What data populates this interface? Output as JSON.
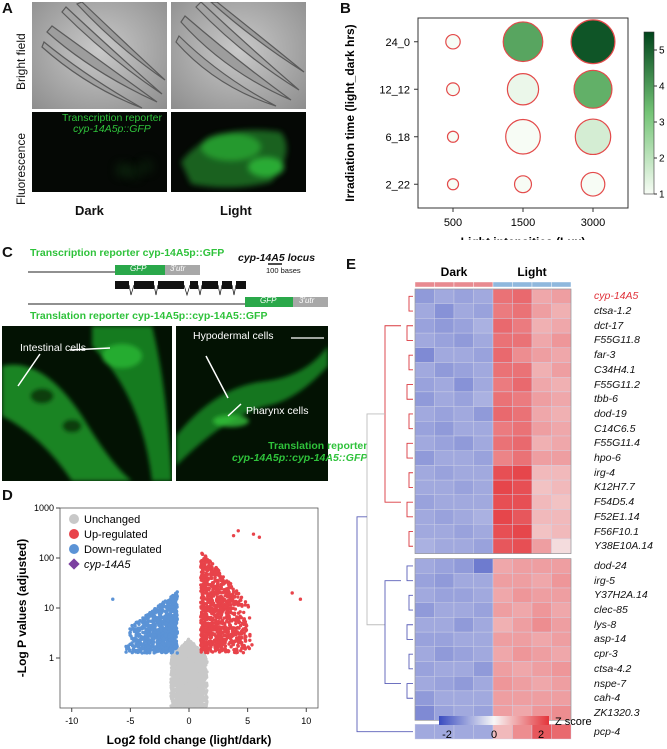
{
  "panel_a": {
    "label": "A",
    "row_labels": {
      "bright": "Bright field",
      "fluor": "Fluorescence"
    },
    "col_labels": {
      "dark": "Dark",
      "light": "Light"
    },
    "reporter_line1": "Transcription reporter",
    "reporter_line2": "cyp-14A5p::GFP"
  },
  "panel_b": {
    "label": "B",
    "chart_data": {
      "type": "bubble",
      "title": "",
      "xlabel": "Light intensities (Lux)",
      "ylabel": "Irradiation time (light_dark hrs)",
      "categories_x": [
        "500",
        "1500",
        "3000"
      ],
      "categories_y": [
        "2_22",
        "6_18",
        "12_12",
        "24_0"
      ],
      "colorbar": {
        "min": 1,
        "max": 5,
        "ticks": [
          1,
          2,
          3,
          4,
          5
        ]
      },
      "points": [
        {
          "x": "500",
          "y": "24_0",
          "size": 1.0,
          "color_value": 1.0
        },
        {
          "x": "500",
          "y": "12_12",
          "size": 0.8,
          "color_value": 1.0
        },
        {
          "x": "500",
          "y": "6_18",
          "size": 0.6,
          "color_value": 1.0
        },
        {
          "x": "500",
          "y": "2_22",
          "size": 0.6,
          "color_value": 1.0
        },
        {
          "x": "1500",
          "y": "24_0",
          "size": 4.0,
          "color_value": 3.8
        },
        {
          "x": "1500",
          "y": "12_12",
          "size": 3.0,
          "color_value": 1.2
        },
        {
          "x": "1500",
          "y": "6_18",
          "size": 3.4,
          "color_value": 1.0
        },
        {
          "x": "1500",
          "y": "2_22",
          "size": 1.3,
          "color_value": 1.0
        },
        {
          "x": "3000",
          "y": "24_0",
          "size": 4.5,
          "color_value": 5.2
        },
        {
          "x": "3000",
          "y": "12_12",
          "size": 3.8,
          "color_value": 3.6
        },
        {
          "x": "3000",
          "y": "6_18",
          "size": 3.5,
          "color_value": 1.6
        },
        {
          "x": "3000",
          "y": "2_22",
          "size": 2.1,
          "color_value": 1.0
        }
      ],
      "colors": {
        "low": "#f7fcf5",
        "high": "#00441b",
        "edge": "#e34a4a"
      }
    }
  },
  "panel_c": {
    "label": "C",
    "transcription_reporter": "Transcription reporter cyp-14A5p::GFP",
    "locus": "cyp-14A5 locus",
    "scale": "100 bases",
    "gfp": "GFP",
    "utr": "3'utr",
    "translation_reporter": "Translation reporter cyp-14A5p::cyp-14A5::GFP",
    "intestinal": "Intestinal cells",
    "hypodermal": "Hypodermal cells",
    "pharynx": "Pharynx cells",
    "translation_line1": "Translation reporter",
    "translation_line2": "cyp-14A5p::cyp-14A5::GFP"
  },
  "panel_d": {
    "label": "D",
    "chart_data": {
      "type": "scatter",
      "title": "",
      "xlabel": "Log2 fold change (light/dark)",
      "ylabel": "-Log P values (adjusted)",
      "xlim": [
        -11,
        11
      ],
      "ylim_log": [
        0.1,
        1000
      ],
      "x_ticks": [
        -10,
        -5,
        0,
        5,
        10
      ],
      "y_ticks": [
        1,
        10,
        100,
        1000
      ],
      "legend": [
        "Unchanged",
        "Up-regulated",
        "Down-regulated",
        "cyp-14A5"
      ],
      "series_colors": {
        "unchanged": "#c8c8c8",
        "up": "#e8434a",
        "down": "#5b93d6",
        "cyp": "#7b3fa0"
      },
      "highlight": {
        "name": "cyp-14A5",
        "x": 0.8,
        "y": 200
      }
    }
  },
  "panel_e": {
    "label": "E",
    "groups": [
      "Dark",
      "Light"
    ],
    "genes": [
      "cyp-14A5",
      "ctsa-1.2",
      "dct-17",
      "F55G11.8",
      "far-3",
      "C34H4.1",
      "F55G11.2",
      "tbb-6",
      "dod-19",
      "C14C6.5",
      "F55G11.4",
      "hpo-6",
      "irg-4",
      "K12H7.7",
      "F54D5.4",
      "F52E1.14",
      "F56F10.1",
      "Y38E10A.14",
      "dod-24",
      "irg-5",
      "Y37H2A.14",
      "clec-85",
      "lys-8",
      "asp-14",
      "cpr-3",
      "ctsa-4.2",
      "nspe-7",
      "cah-4",
      "ZK1320.3",
      "pcp-4"
    ],
    "zscore_label": "Z score",
    "zscore_ticks": [
      "-2",
      "0",
      "2"
    ],
    "chart_data": {
      "type": "heatmap",
      "columns": [
        "Dark",
        "Dark",
        "Dark",
        "Dark",
        "Light",
        "Light",
        "Light",
        "Light"
      ],
      "values": [
        [
          -1.2,
          -1.0,
          -1.1,
          -1.0,
          1.5,
          1.6,
          0.9,
          1.0
        ],
        [
          -1.0,
          -1.3,
          -1.0,
          -1.1,
          1.4,
          1.5,
          1.0,
          0.8
        ],
        [
          -1.1,
          -1.2,
          -1.1,
          -0.9,
          1.6,
          1.4,
          0.8,
          0.9
        ],
        [
          -1.0,
          -1.1,
          -1.2,
          -1.0,
          1.5,
          1.5,
          0.9,
          1.1
        ],
        [
          -1.4,
          -1.0,
          -1.0,
          -1.1,
          1.6,
          1.2,
          1.0,
          0.9
        ],
        [
          -1.0,
          -1.2,
          -1.1,
          -1.0,
          1.5,
          1.5,
          0.8,
          1.0
        ],
        [
          -1.1,
          -1.0,
          -1.3,
          -1.0,
          1.4,
          1.6,
          0.9,
          0.8
        ],
        [
          -1.2,
          -1.0,
          -1.1,
          -0.9,
          1.5,
          1.4,
          1.0,
          0.9
        ],
        [
          -1.0,
          -1.1,
          -1.0,
          -1.2,
          1.6,
          1.5,
          0.9,
          0.8
        ],
        [
          -1.1,
          -1.2,
          -1.0,
          -1.0,
          1.4,
          1.5,
          1.0,
          0.9
        ],
        [
          -1.0,
          -1.1,
          -1.2,
          -1.0,
          1.5,
          1.6,
          0.8,
          0.9
        ],
        [
          -1.2,
          -1.0,
          -1.0,
          -1.1,
          1.3,
          1.5,
          1.0,
          1.0
        ],
        [
          -1.0,
          -1.1,
          -1.0,
          -1.0,
          1.9,
          2.0,
          0.7,
          0.7
        ],
        [
          -1.0,
          -1.0,
          -1.1,
          -1.0,
          2.0,
          1.9,
          0.6,
          0.7
        ],
        [
          -1.1,
          -1.0,
          -1.0,
          -1.0,
          1.9,
          1.9,
          0.7,
          0.6
        ],
        [
          -1.0,
          -1.1,
          -1.0,
          -0.9,
          2.0,
          1.8,
          0.7,
          0.7
        ],
        [
          -1.0,
          -1.0,
          -1.1,
          -1.0,
          1.9,
          2.0,
          0.6,
          0.7
        ],
        [
          -0.9,
          -1.0,
          -1.0,
          -1.1,
          1.8,
          1.9,
          1.0,
          0.3
        ],
        [
          -1.0,
          -1.1,
          -1.2,
          -1.6,
          0.9,
          1.0,
          1.0,
          1.0
        ],
        [
          -1.1,
          -1.2,
          -1.0,
          -1.0,
          1.0,
          1.0,
          0.9,
          1.1
        ],
        [
          -1.0,
          -1.1,
          -1.1,
          -1.0,
          0.9,
          1.1,
          1.0,
          1.0
        ],
        [
          -1.2,
          -1.0,
          -1.0,
          -1.1,
          1.0,
          0.9,
          1.1,
          0.9
        ],
        [
          -1.0,
          -1.0,
          -1.2,
          -1.0,
          0.8,
          1.0,
          1.2,
          1.0
        ],
        [
          -1.1,
          -1.1,
          -1.0,
          -1.0,
          1.0,
          1.0,
          0.9,
          1.0
        ],
        [
          -1.0,
          -1.2,
          -1.1,
          -1.0,
          0.9,
          1.1,
          1.0,
          0.9
        ],
        [
          -1.1,
          -1.0,
          -1.0,
          -1.2,
          1.0,
          0.9,
          1.0,
          1.1
        ],
        [
          -1.0,
          -1.1,
          -1.2,
          -1.0,
          1.1,
          1.0,
          0.9,
          1.0
        ],
        [
          -1.2,
          -1.0,
          -1.0,
          -1.0,
          1.0,
          1.0,
          1.0,
          1.0
        ],
        [
          -1.4,
          -1.1,
          -1.0,
          -1.1,
          1.0,
          0.9,
          1.1,
          1.2
        ],
        [
          -1.0,
          -1.0,
          -1.0,
          -1.0,
          0.7,
          1.2,
          1.8,
          1.6
        ]
      ]
    }
  }
}
